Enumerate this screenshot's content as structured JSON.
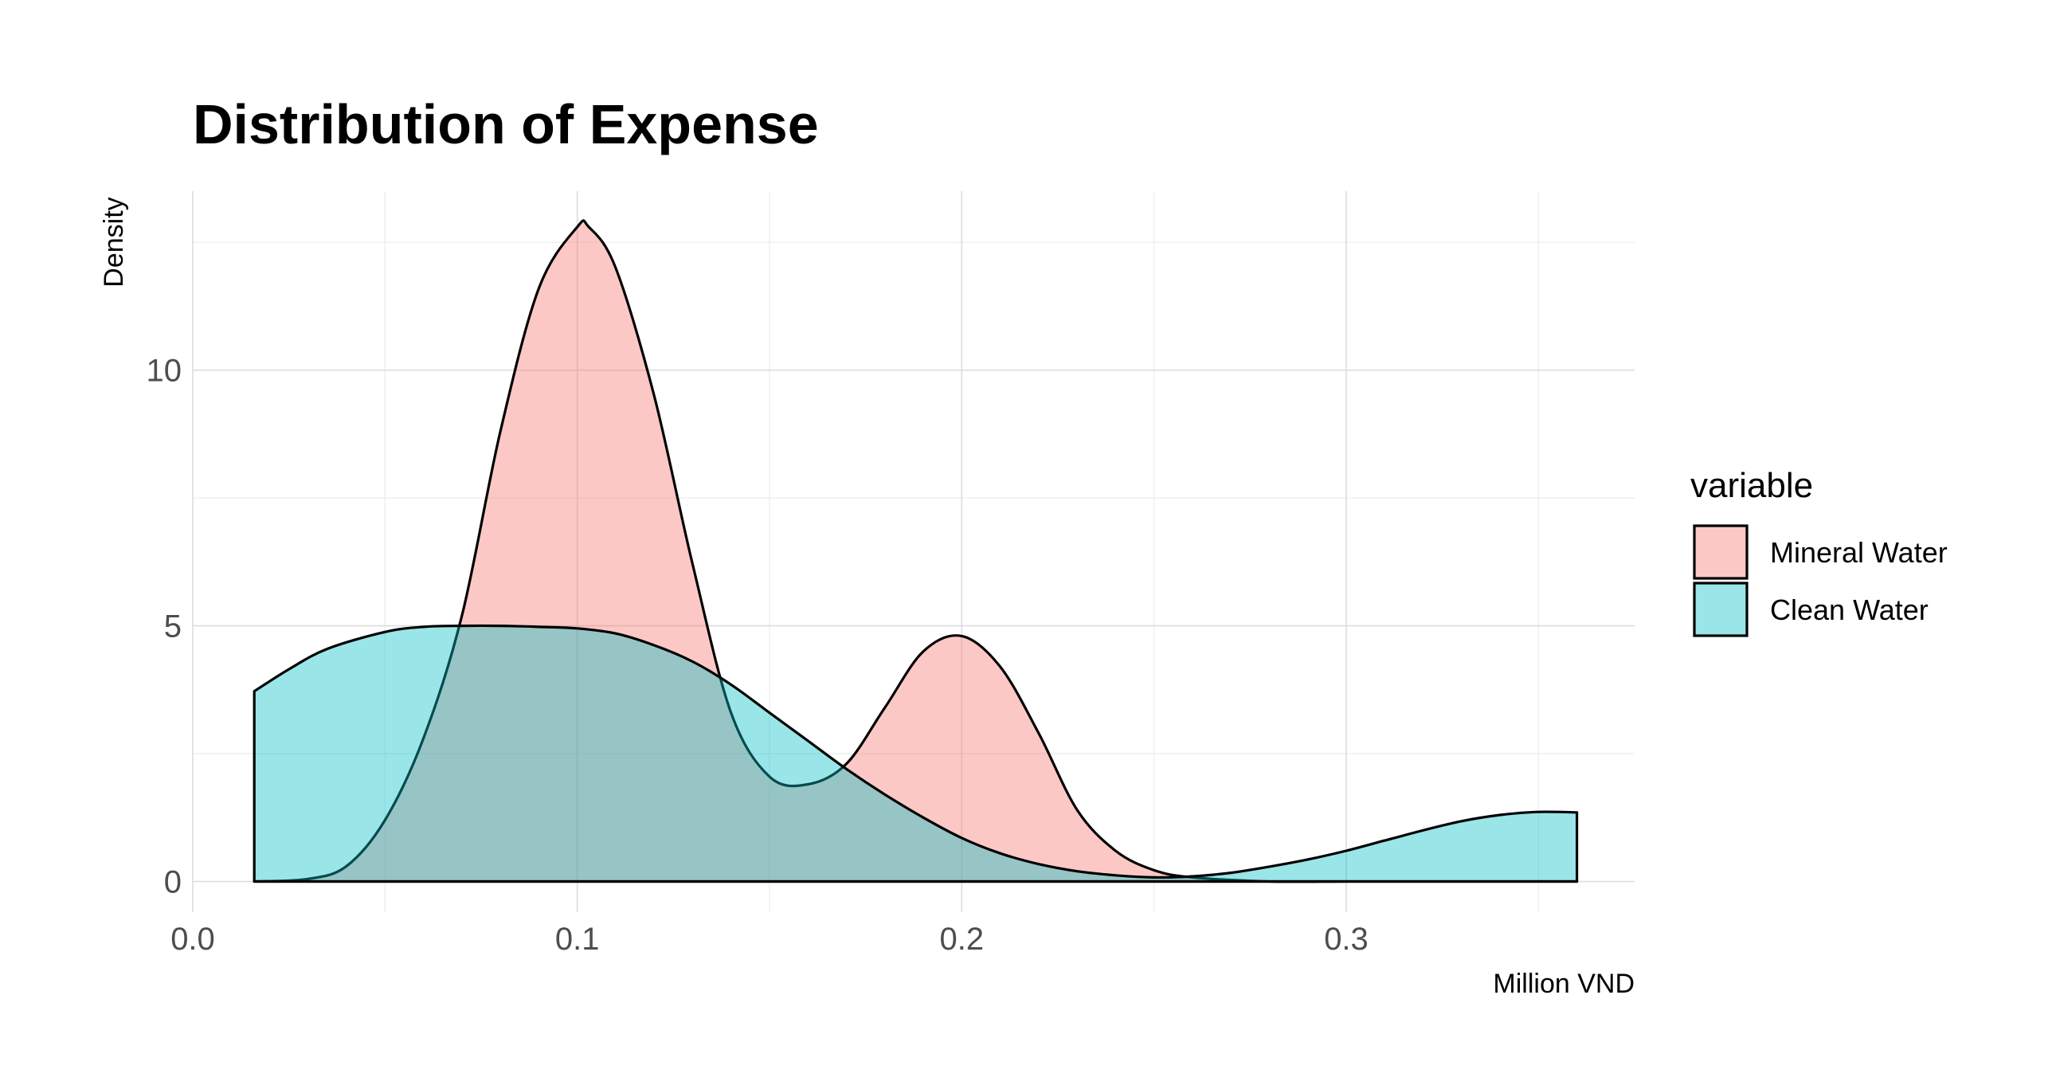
{
  "chart_data": {
    "type": "area",
    "title": "Distribution of Expense",
    "xlabel": "Million VND",
    "ylabel": "Density",
    "xlim": [
      0.0,
      0.375
    ],
    "ylim": [
      -0.6,
      13.5
    ],
    "x_ticks": [
      0.0,
      0.1,
      0.2,
      0.3
    ],
    "x_tick_labels": [
      "0.0",
      "0.1",
      "0.2",
      "0.3"
    ],
    "y_ticks": [
      0,
      5,
      10
    ],
    "y_tick_labels": [
      "0",
      "5",
      "10"
    ],
    "grid": true,
    "legend": {
      "title": "variable",
      "position": "right"
    },
    "series": [
      {
        "name": "Mineral Water",
        "fill": "#F8766D",
        "x": [
          0.016,
          0.03,
          0.04,
          0.05,
          0.06,
          0.07,
          0.08,
          0.09,
          0.1,
          0.103,
          0.11,
          0.12,
          0.13,
          0.14,
          0.15,
          0.16,
          0.17,
          0.18,
          0.19,
          0.2,
          0.21,
          0.22,
          0.23,
          0.24,
          0.25,
          0.26,
          0.28,
          0.3,
          0.32,
          0.34,
          0.36
        ],
        "values": [
          0.0,
          0.05,
          0.3,
          1.2,
          2.8,
          5.2,
          8.8,
          11.6,
          12.8,
          12.8,
          12.0,
          9.5,
          6.2,
          3.3,
          2.05,
          1.9,
          2.3,
          3.4,
          4.5,
          4.8,
          4.2,
          2.9,
          1.4,
          0.6,
          0.22,
          0.08,
          0.0,
          0.0,
          0.0,
          0.0,
          0.0
        ]
      },
      {
        "name": "Clean Water",
        "fill": "#00BFC4",
        "x": [
          0.016,
          0.025,
          0.035,
          0.05,
          0.06,
          0.07,
          0.08,
          0.09,
          0.1,
          0.11,
          0.12,
          0.13,
          0.14,
          0.15,
          0.16,
          0.17,
          0.18,
          0.19,
          0.2,
          0.21,
          0.22,
          0.23,
          0.24,
          0.25,
          0.26,
          0.27,
          0.28,
          0.29,
          0.3,
          0.31,
          0.32,
          0.33,
          0.34,
          0.35,
          0.36
        ],
        "values": [
          3.72,
          4.15,
          4.55,
          4.88,
          4.98,
          5.0,
          5.0,
          4.98,
          4.95,
          4.85,
          4.62,
          4.3,
          3.85,
          3.3,
          2.75,
          2.2,
          1.7,
          1.25,
          0.85,
          0.55,
          0.34,
          0.2,
          0.12,
          0.08,
          0.1,
          0.17,
          0.29,
          0.43,
          0.6,
          0.8,
          1.0,
          1.18,
          1.3,
          1.36,
          1.35
        ]
      }
    ]
  }
}
